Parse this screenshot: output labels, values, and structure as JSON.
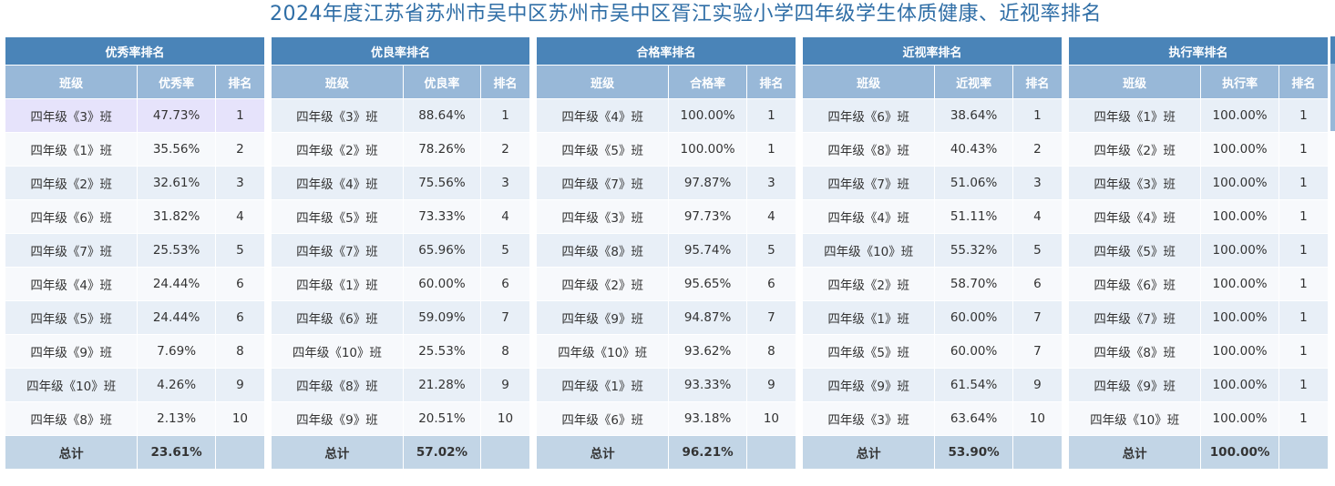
{
  "title": "2024年度江苏省苏州市吴中区苏州市吴中区胥江实验小学四年级学生体质健康、近视率排名",
  "labels": {
    "class": "班级",
    "rank": "排名",
    "total": "总计"
  },
  "tables": [
    {
      "heading": "优秀率排名",
      "metric": "优秀率",
      "rows": [
        {
          "cls": "四年级《3》班",
          "val": "47.73%",
          "rank": "1"
        },
        {
          "cls": "四年级《1》班",
          "val": "35.56%",
          "rank": "2"
        },
        {
          "cls": "四年级《2》班",
          "val": "32.61%",
          "rank": "3"
        },
        {
          "cls": "四年级《6》班",
          "val": "31.82%",
          "rank": "4"
        },
        {
          "cls": "四年级《7》班",
          "val": "25.53%",
          "rank": "5"
        },
        {
          "cls": "四年级《4》班",
          "val": "24.44%",
          "rank": "6"
        },
        {
          "cls": "四年级《5》班",
          "val": "24.44%",
          "rank": "6"
        },
        {
          "cls": "四年级《9》班",
          "val": "7.69%",
          "rank": "8"
        },
        {
          "cls": "四年级《10》班",
          "val": "4.26%",
          "rank": "9"
        },
        {
          "cls": "四年级《8》班",
          "val": "2.13%",
          "rank": "10"
        }
      ],
      "total": "23.61%"
    },
    {
      "heading": "优良率排名",
      "metric": "优良率",
      "rows": [
        {
          "cls": "四年级《3》班",
          "val": "88.64%",
          "rank": "1"
        },
        {
          "cls": "四年级《2》班",
          "val": "78.26%",
          "rank": "2"
        },
        {
          "cls": "四年级《4》班",
          "val": "75.56%",
          "rank": "3"
        },
        {
          "cls": "四年级《5》班",
          "val": "73.33%",
          "rank": "4"
        },
        {
          "cls": "四年级《7》班",
          "val": "65.96%",
          "rank": "5"
        },
        {
          "cls": "四年级《1》班",
          "val": "60.00%",
          "rank": "6"
        },
        {
          "cls": "四年级《6》班",
          "val": "59.09%",
          "rank": "7"
        },
        {
          "cls": "四年级《10》班",
          "val": "25.53%",
          "rank": "8"
        },
        {
          "cls": "四年级《8》班",
          "val": "21.28%",
          "rank": "9"
        },
        {
          "cls": "四年级《9》班",
          "val": "20.51%",
          "rank": "10"
        }
      ],
      "total": "57.02%"
    },
    {
      "heading": "合格率排名",
      "metric": "合格率",
      "rows": [
        {
          "cls": "四年级《4》班",
          "val": "100.00%",
          "rank": "1"
        },
        {
          "cls": "四年级《5》班",
          "val": "100.00%",
          "rank": "1"
        },
        {
          "cls": "四年级《7》班",
          "val": "97.87%",
          "rank": "3"
        },
        {
          "cls": "四年级《3》班",
          "val": "97.73%",
          "rank": "4"
        },
        {
          "cls": "四年级《8》班",
          "val": "95.74%",
          "rank": "5"
        },
        {
          "cls": "四年级《2》班",
          "val": "95.65%",
          "rank": "6"
        },
        {
          "cls": "四年级《9》班",
          "val": "94.87%",
          "rank": "7"
        },
        {
          "cls": "四年级《10》班",
          "val": "93.62%",
          "rank": "8"
        },
        {
          "cls": "四年级《1》班",
          "val": "93.33%",
          "rank": "9"
        },
        {
          "cls": "四年级《6》班",
          "val": "93.18%",
          "rank": "10"
        }
      ],
      "total": "96.21%"
    },
    {
      "heading": "近视率排名",
      "metric": "近视率",
      "rows": [
        {
          "cls": "四年级《6》班",
          "val": "38.64%",
          "rank": "1"
        },
        {
          "cls": "四年级《8》班",
          "val": "40.43%",
          "rank": "2"
        },
        {
          "cls": "四年级《7》班",
          "val": "51.06%",
          "rank": "3"
        },
        {
          "cls": "四年级《4》班",
          "val": "51.11%",
          "rank": "4"
        },
        {
          "cls": "四年级《10》班",
          "val": "55.32%",
          "rank": "5"
        },
        {
          "cls": "四年级《2》班",
          "val": "58.70%",
          "rank": "6"
        },
        {
          "cls": "四年级《1》班",
          "val": "60.00%",
          "rank": "7"
        },
        {
          "cls": "四年级《5》班",
          "val": "60.00%",
          "rank": "7"
        },
        {
          "cls": "四年级《9》班",
          "val": "61.54%",
          "rank": "9"
        },
        {
          "cls": "四年级《3》班",
          "val": "63.64%",
          "rank": "10"
        }
      ],
      "total": "53.90%"
    },
    {
      "heading": "执行率排名",
      "metric": "执行率",
      "rows": [
        {
          "cls": "四年级《1》班",
          "val": "100.00%",
          "rank": "1"
        },
        {
          "cls": "四年级《2》班",
          "val": "100.00%",
          "rank": "1"
        },
        {
          "cls": "四年级《3》班",
          "val": "100.00%",
          "rank": "1"
        },
        {
          "cls": "四年级《4》班",
          "val": "100.00%",
          "rank": "1"
        },
        {
          "cls": "四年级《5》班",
          "val": "100.00%",
          "rank": "1"
        },
        {
          "cls": "四年级《6》班",
          "val": "100.00%",
          "rank": "1"
        },
        {
          "cls": "四年级《7》班",
          "val": "100.00%",
          "rank": "1"
        },
        {
          "cls": "四年级《8》班",
          "val": "100.00%",
          "rank": "1"
        },
        {
          "cls": "四年级《9》班",
          "val": "100.00%",
          "rank": "1"
        },
        {
          "cls": "四年级《10》班",
          "val": "100.00%",
          "rank": "1"
        }
      ],
      "total": "100.00%"
    }
  ],
  "colors": {
    "title": "#2f6ea6",
    "table_header": "#4a84b8",
    "column_header": "#98b8d8",
    "row_even": "#e8eff7",
    "row_odd": "#f7f9fc",
    "row_highlight": "#e6e3fb",
    "total_row": "#c2d5e6"
  }
}
